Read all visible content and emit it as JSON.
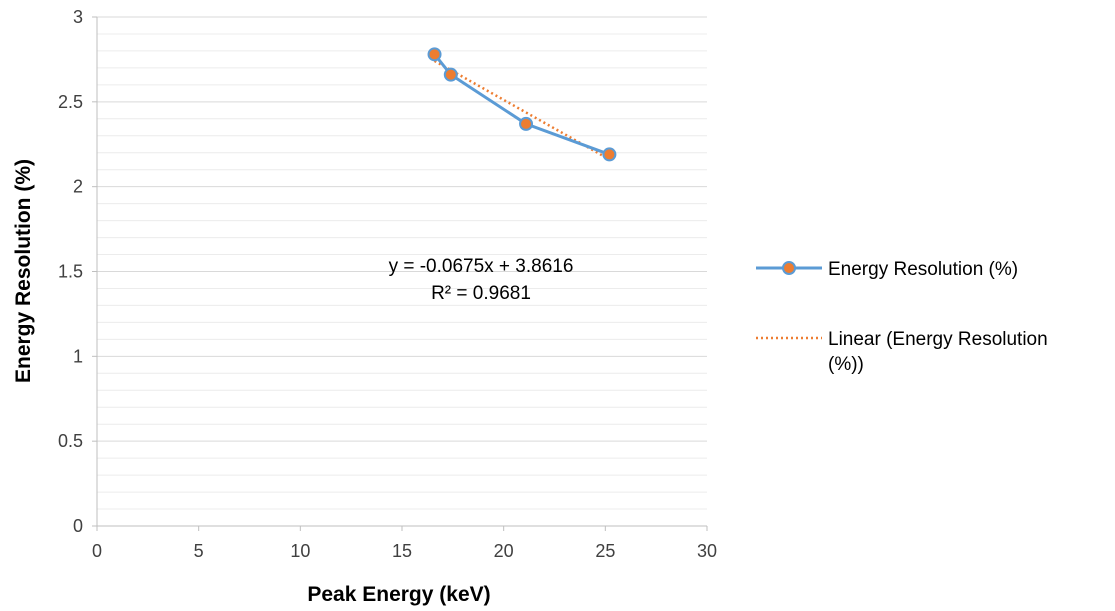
{
  "chart_data": {
    "type": "scatter",
    "xlabel": "Peak Energy (keV)",
    "ylabel": "Energy Resolution (%)",
    "xlim": [
      0,
      30
    ],
    "ylim": [
      0,
      3
    ],
    "x_ticks": [
      "0",
      "5",
      "10",
      "15",
      "20",
      "25",
      "30"
    ],
    "y_ticks": [
      "0",
      "0.5",
      "1",
      "1.5",
      "2",
      "2.5",
      "3"
    ],
    "grid": "horizontal minor lines",
    "legend_position": "right",
    "series": [
      {
        "name": "Energy Resolution (%)",
        "style": "line-with-markers",
        "line_color": "#5b9bd5",
        "marker_color": "#ed7d31",
        "points": [
          {
            "x": 16.6,
            "y": 2.78
          },
          {
            "x": 17.4,
            "y": 2.66
          },
          {
            "x": 21.1,
            "y": 2.37
          },
          {
            "x": 25.2,
            "y": 2.19
          }
        ]
      }
    ],
    "trendline": {
      "name": "Linear (Energy Resolution (%))",
      "type": "linear",
      "slope": -0.0675,
      "intercept": 3.8616,
      "x_range": [
        16.6,
        25.2
      ],
      "color": "#ed7d31",
      "style": "dotted"
    },
    "annotations": [
      "y = -0.0675x + 3.8616",
      "R² = 0.9681"
    ],
    "legend": [
      "Energy Resolution (%)",
      "Linear (Energy Resolution",
      "(%))"
    ]
  }
}
